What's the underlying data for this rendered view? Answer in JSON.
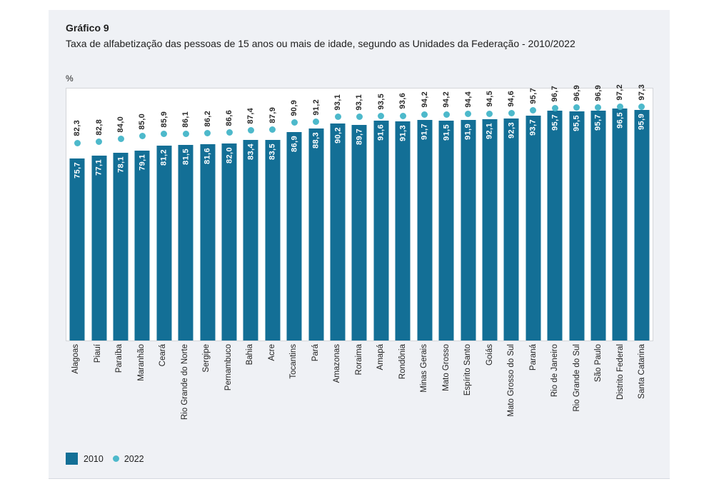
{
  "header": {
    "title": "Gráfico 9",
    "subtitle": "Taxa de alfabetização das pessoas de 15 anos ou mais de idade, segundo as Unidades da Federação - 2010/2022"
  },
  "chart_data": {
    "type": "bar",
    "title": "Gráfico 9",
    "subtitle": "Taxa de alfabetização das pessoas de 15 anos ou mais de idade, segundo as Unidades da Federação - 2010/2022",
    "unit_label": "%",
    "categories": [
      "Alagoas",
      "Piauí",
      "Paraíba",
      "Maranhão",
      "Ceará",
      "Rio Grande do Norte",
      "Sergipe",
      "Pernambuco",
      "Bahia",
      "Acre",
      "Tocantins",
      "Pará",
      "Amazonas",
      "Roraima",
      "Amapá",
      "Rondônia",
      "Minas Gerais",
      "Mato Grosso",
      "Espírito Santo",
      "Goiás",
      "Mato Grosso do Sul",
      "Paraná",
      "Rio de Janeiro",
      "Rio Grande do Sul",
      "São Paulo",
      "Distrito Federal",
      "Santa Catarina"
    ],
    "series": [
      {
        "name": "2010",
        "mark": "bar",
        "color": "#136f96",
        "values": [
          75.7,
          77.1,
          78.1,
          79.1,
          81.2,
          81.5,
          81.6,
          82.0,
          83.4,
          83.5,
          86.9,
          88.3,
          90.2,
          89.7,
          91.6,
          91.3,
          91.7,
          91.5,
          91.9,
          92.1,
          92.3,
          93.7,
          95.7,
          95.5,
          95.7,
          96.5,
          95.9
        ]
      },
      {
        "name": "2022",
        "mark": "scatter",
        "color": "#4db9cb",
        "values": [
          82.3,
          82.8,
          84.0,
          85.0,
          85.9,
          86.1,
          86.2,
          86.6,
          87.4,
          87.9,
          90.9,
          91.2,
          93.1,
          93.1,
          93.5,
          93.6,
          94.2,
          94.2,
          94.4,
          94.5,
          94.6,
          95.7,
          96.7,
          96.9,
          96.9,
          97.2,
          97.3
        ]
      }
    ],
    "ylim": [
      0,
      104.9
    ],
    "grid": false,
    "legend_position": "bottom-left",
    "value_decimal_separator": ","
  },
  "legend": {
    "items": [
      {
        "label": "2010",
        "swatch": "square"
      },
      {
        "label": "2022",
        "swatch": "dot"
      }
    ]
  }
}
